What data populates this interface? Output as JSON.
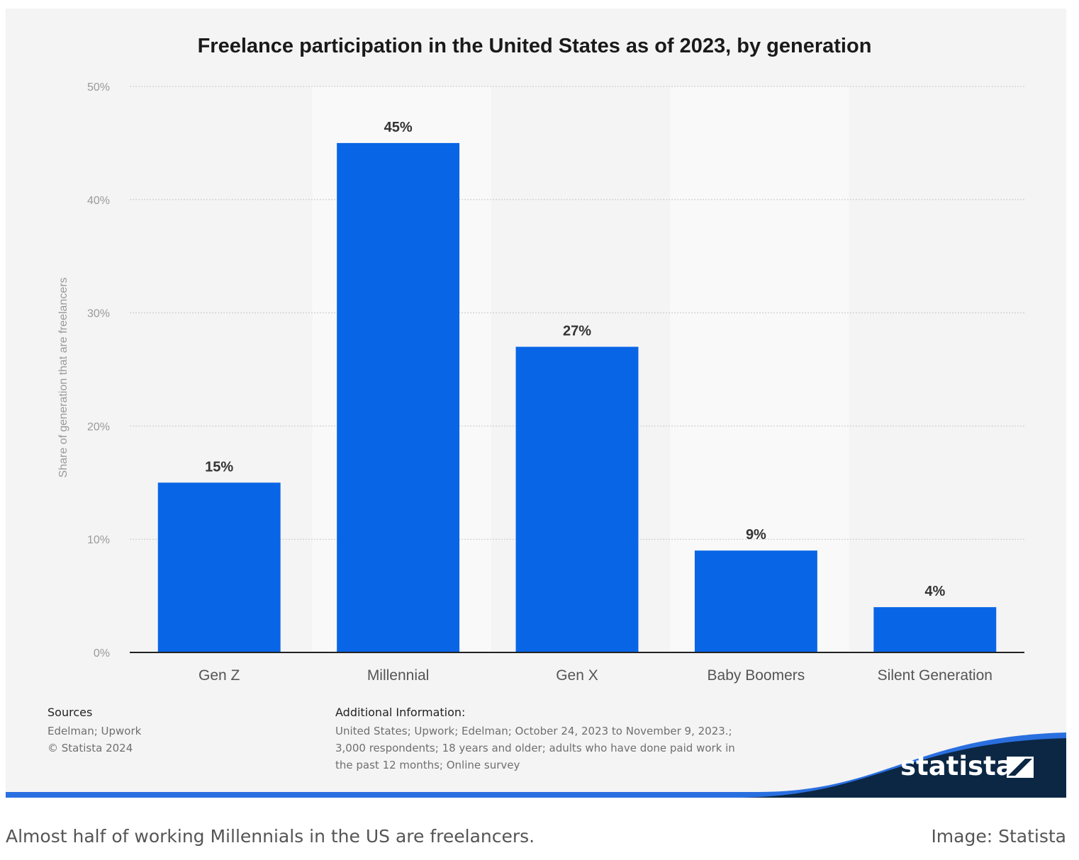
{
  "chart_data": {
    "type": "bar",
    "title": "Freelance participation in the United States as of 2023, by generation",
    "ylabel": "Share of generation that are freelancers",
    "xlabel": "",
    "categories": [
      "Gen Z",
      "Millennial",
      "Gen X",
      "Baby Boomers",
      "Silent Generation"
    ],
    "values": [
      15,
      45,
      27,
      9,
      4
    ],
    "value_labels": [
      "15%",
      "45%",
      "27%",
      "9%",
      "4%"
    ],
    "ylim": [
      0,
      50
    ],
    "yticks": [
      0,
      10,
      20,
      30,
      40,
      50
    ],
    "ytick_labels": [
      "0%",
      "10%",
      "20%",
      "30%",
      "40%",
      "50%"
    ],
    "grid": true,
    "bar_color": "#0866e6"
  },
  "footer": {
    "sources_title": "Sources",
    "sources": [
      "Edelman; Upwork",
      "© Statista 2024"
    ],
    "info_title": "Additional Information:",
    "info_lines": [
      "United States; Upwork; Edelman; October 24, 2023 to November 9, 2023.;",
      "3,000 respondents; 18 years and older; adults who have done paid work in",
      "the past 12 months; Online survey"
    ],
    "logo_text": "statista"
  },
  "caption": "Almost half of working Millennials in the US are freelancers.",
  "credit": "Image: Statista"
}
